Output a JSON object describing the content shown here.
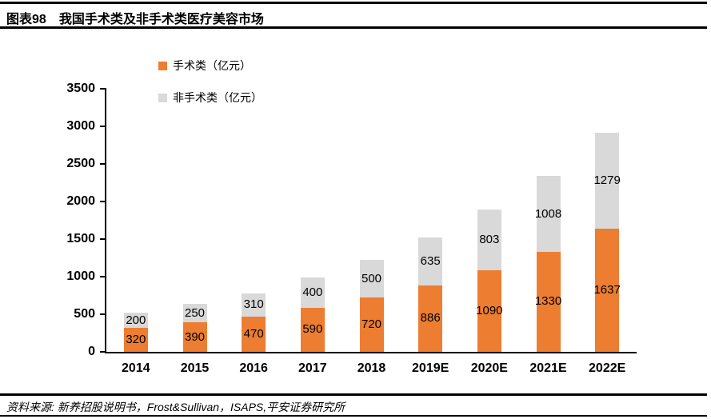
{
  "header": {
    "figure_label": "图表98",
    "title": "我国手术类及非手术类医疗美容市场"
  },
  "footer": {
    "source": "资料来源: 新养招股说明书，Frost&Sullivan，ISAPS,平安证券研究所"
  },
  "chart_data": {
    "type": "bar",
    "stacked": true,
    "title": "我国手术类及非手术类医疗美容市场",
    "categories": [
      "2014",
      "2015",
      "2016",
      "2017",
      "2018",
      "2019E",
      "2020E",
      "2021E",
      "2022E"
    ],
    "series": [
      {
        "name": "手术类（亿元）",
        "color": "#ED7D31",
        "values": [
          320,
          390,
          470,
          590,
          720,
          886,
          1090,
          1330,
          1637
        ]
      },
      {
        "name": "非手术类（亿元）",
        "color": "#D9D9D9",
        "values": [
          200,
          250,
          310,
          400,
          500,
          635,
          803,
          1008,
          1279
        ]
      }
    ],
    "ylim": [
      0,
      3500
    ],
    "y_ticks": [
      0,
      500,
      1000,
      1500,
      2000,
      2500,
      3000,
      3500
    ],
    "xlabel": "",
    "ylabel": "",
    "grid": false,
    "data_labels": true,
    "legend_position": "top-left",
    "axis_color": "#000000"
  }
}
